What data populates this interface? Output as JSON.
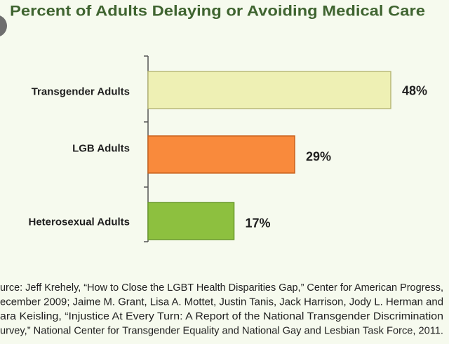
{
  "chart_data": {
    "type": "bar",
    "orientation": "horizontal",
    "title": "Percent of Adults Delaying or Avoiding Medical Care",
    "categories": [
      "Transgender Adults",
      "LGB Adults",
      "Heterosexual Adults"
    ],
    "values": [
      48,
      29,
      17
    ],
    "value_labels": [
      "48%",
      "29%",
      "17%"
    ],
    "colors": [
      "#eef0b4",
      "#f98a3c",
      "#8dc03f"
    ],
    "border_colors": [
      "#b9b978",
      "#c9621e",
      "#6a9a2c"
    ],
    "annotations": [
      "urce: Jeff Krehely, “How to Close the LGBT Health Disparities Gap,” Center for American Progress,",
      "ecember 2009; Jaime M. Grant, Lisa A. Mottet, Justin Tanis, Jack Harrison, Jody L. Herman and",
      "ara Keisling, “Injustice At Every Turn: A Report of the National Transgender Discrimination",
      "urvey,” National Center for Transgender Equality and National Gay and Lesbian Task Force, 2011."
    ]
  }
}
